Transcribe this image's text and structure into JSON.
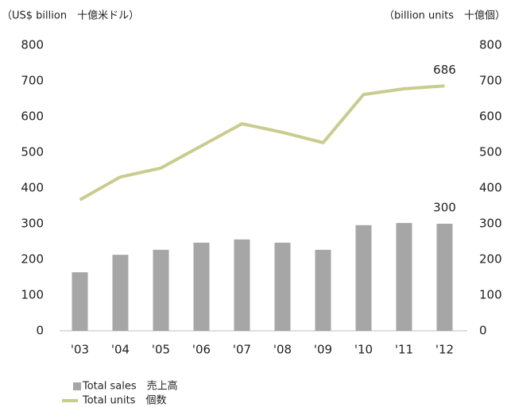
{
  "chart_data": {
    "type": "bar_line",
    "ylabel": "（US$ billion　十億米ドル）",
    "y2label": "（billion units　十億個）",
    "categories": [
      "'03",
      "'04",
      "'05",
      "'06",
      "'07",
      "'08",
      "'09",
      "'10",
      "'11",
      "'12"
    ],
    "series": [
      {
        "name": "Total sales　売上高",
        "type": "bar",
        "color": "#a6a6a6",
        "axis": "y",
        "data_label": "last",
        "values": [
          164,
          213,
          227,
          247,
          256,
          247,
          227,
          296,
          302,
          300
        ]
      },
      {
        "name": "Total units　個数",
        "type": "line",
        "color": "#c9cc8f",
        "axis": "y2",
        "data_label": "last",
        "values": [
          367,
          431,
          456,
          518,
          580,
          556,
          527,
          662,
          678,
          686
        ]
      }
    ],
    "ylim": [
      0,
      800
    ],
    "yticks": [
      0,
      100,
      200,
      300,
      400,
      500,
      600,
      700,
      800
    ],
    "y2lim": [
      0,
      800
    ],
    "y2ticks": [
      0,
      100,
      200,
      300,
      400,
      500,
      600,
      700,
      800
    ],
    "grid": false,
    "legend": "bottom-left"
  }
}
